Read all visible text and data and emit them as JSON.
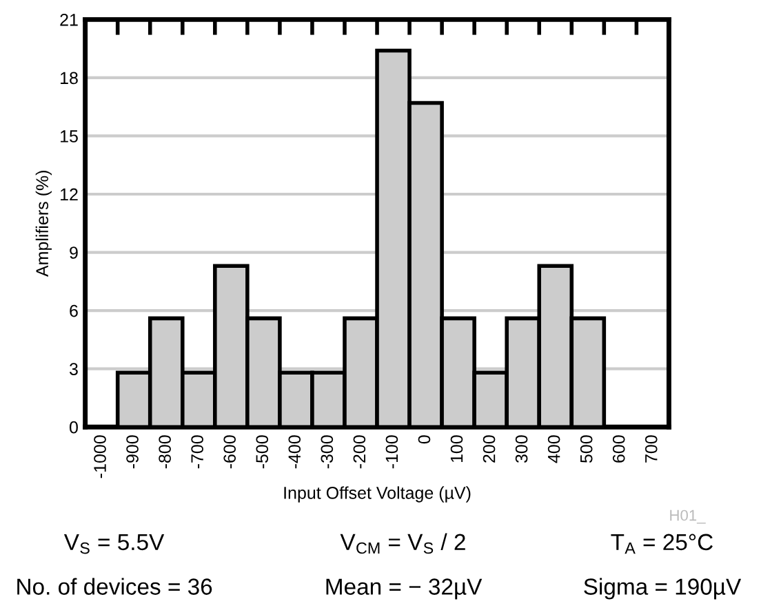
{
  "chart_data": {
    "type": "bar",
    "xlabel": "Input Offset Voltage (µV)",
    "ylabel": "Amplifiers (%)",
    "categories": [
      "-1000",
      "-900",
      "-800",
      "-700",
      "-600",
      "-500",
      "-400",
      "-300",
      "-200",
      "-100",
      "0",
      "100",
      "200",
      "300",
      "400",
      "500",
      "600",
      "700"
    ],
    "values": [
      0,
      2.8,
      5.6,
      2.8,
      8.3,
      5.6,
      2.8,
      2.8,
      5.6,
      19.4,
      16.7,
      5.6,
      2.8,
      5.6,
      8.3,
      5.6,
      0,
      0
    ],
    "color": "#cccccc",
    "ylim": [
      0,
      21
    ],
    "yticks": [
      0,
      3,
      6,
      9,
      12,
      15,
      18,
      21
    ],
    "grid": "y",
    "annotations": [
      "H01_",
      "V$_{S}$ = 5.5V",
      "V$_{CM}$ = V$_{S}$ / 2",
      "T$_{A}$ = 25°C",
      "No. of devices = 36",
      "Mean = − 32µV",
      "Sigma = 190µV"
    ]
  }
}
